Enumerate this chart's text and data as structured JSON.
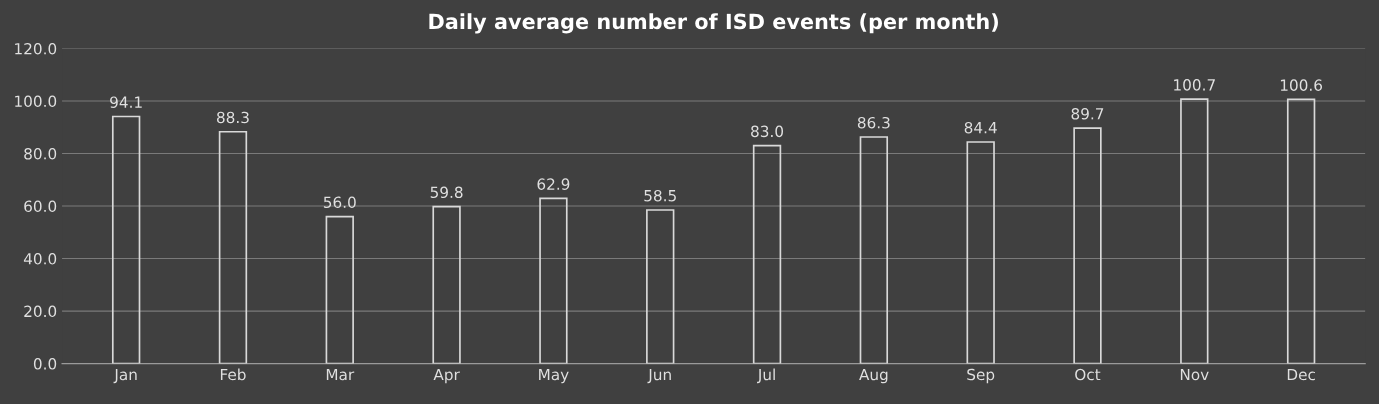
{
  "chart_data": {
    "type": "bar",
    "title": "Daily average number of ISD events (per month)",
    "categories": [
      "Jan",
      "Feb",
      "Mar",
      "Apr",
      "May",
      "Jun",
      "Jul",
      "Aug",
      "Sep",
      "Oct",
      "Nov",
      "Dec"
    ],
    "values": [
      94.1,
      88.3,
      56.0,
      59.8,
      62.9,
      58.5,
      83.0,
      86.3,
      84.4,
      89.7,
      100.7,
      100.6
    ],
    "color": "#d9d9d9",
    "ylim": [
      0,
      120
    ],
    "yticks": [
      {
        "value": 0,
        "label": "0.0"
      },
      {
        "value": 20,
        "label": "20.0"
      },
      {
        "value": 40,
        "label": "40.0"
      },
      {
        "value": 60,
        "label": "60.0"
      },
      {
        "value": 80,
        "label": "80.0"
      },
      {
        "value": 100,
        "label": "100.0"
      },
      {
        "value": 120,
        "label": "120.0"
      }
    ],
    "value_labels": [
      "94.1",
      "88.3",
      "56.0",
      "59.8",
      "62.9",
      "58.5",
      "83.0",
      "86.3",
      "84.4",
      "89.7",
      "100.7",
      "100.6"
    ],
    "grid": "y",
    "legend": false
  }
}
